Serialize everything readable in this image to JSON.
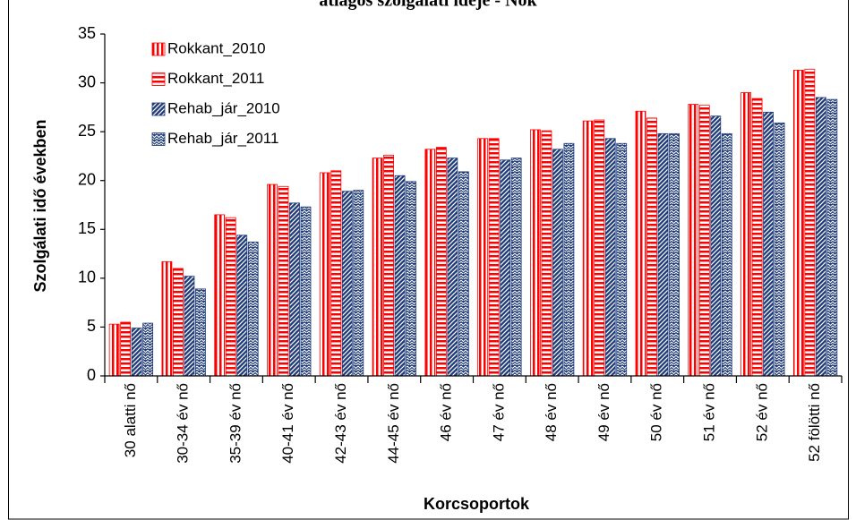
{
  "chart_data": {
    "type": "bar",
    "title": "átlagos szolgálati ideje - Nők",
    "x_label": "Korcsoportok",
    "y_label": "Szolgálati idő években",
    "categories": [
      "30 alatti nő",
      "30-34 év nő",
      "35-39 év nő",
      "40-41 év nő",
      "42-43 év nő",
      "44-45 év nő",
      "46 év nő",
      "47 év nő",
      "48 év nő",
      "49 év nő",
      "50 év nő",
      "51 év nő",
      "52 év nő",
      "52 fölötti nő"
    ],
    "series": [
      {
        "name": "Rokkant_2010",
        "color": "#ff0000",
        "pattern": "vertical",
        "values": [
          5.3,
          11.7,
          16.5,
          19.6,
          20.8,
          22.3,
          23.2,
          24.3,
          25.2,
          26.1,
          27.1,
          27.8,
          29.0,
          31.3
        ]
      },
      {
        "name": "Rokkant_2011",
        "color": "#ff0000",
        "pattern": "horizontal",
        "values": [
          5.5,
          11.0,
          16.2,
          19.4,
          21.0,
          22.6,
          23.4,
          24.3,
          25.1,
          26.2,
          26.4,
          27.7,
          28.4,
          31.4
        ]
      },
      {
        "name": "Rehab_jár_2010",
        "color": "#1f3b7a",
        "pattern": "diagonal",
        "values": [
          4.9,
          10.2,
          14.4,
          17.7,
          18.9,
          20.5,
          22.3,
          22.1,
          23.2,
          24.3,
          24.8,
          26.6,
          27.0,
          28.5
        ]
      },
      {
        "name": "Rehab_jár_2011",
        "color": "#1f3b7a",
        "pattern": "zigzag",
        "values": [
          5.4,
          8.9,
          13.7,
          17.3,
          19.0,
          19.9,
          20.9,
          22.3,
          23.8,
          23.8,
          24.8,
          24.8,
          25.9,
          28.3
        ]
      }
    ],
    "ylim": [
      0,
      35
    ],
    "yticks": [
      0,
      5,
      10,
      15,
      20,
      25,
      30,
      35
    ],
    "grid": false,
    "legend": "upper left"
  }
}
